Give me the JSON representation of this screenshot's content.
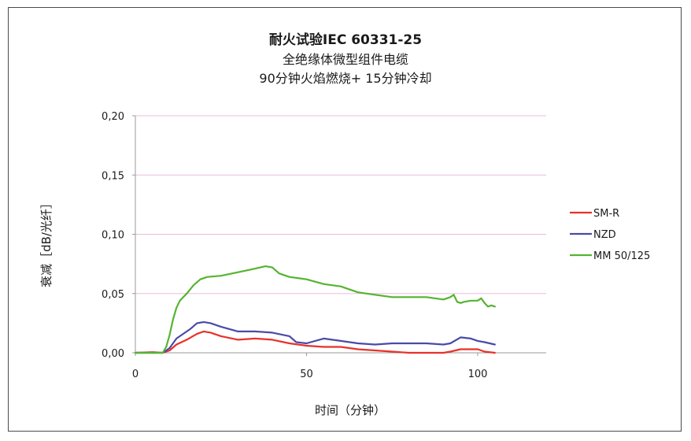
{
  "chart_data": {
    "type": "line",
    "title": "耐火试验IEC 60331-25",
    "subtitle_lines": [
      "全绝缘体微型组件电缆",
      "90分钟火焰燃烧+ 15分钟冷却"
    ],
    "xlabel": "时间（分钟）",
    "ylabel": "衰减［dB/光纤］",
    "xlim": [
      0,
      120
    ],
    "ylim": [
      0,
      0.2
    ],
    "x_ticks": [
      0,
      50,
      100
    ],
    "x_tick_labels": [
      "0",
      "50",
      "100"
    ],
    "y_ticks": [
      0,
      0.05,
      0.1,
      0.15,
      0.2
    ],
    "y_tick_labels": [
      "0,00",
      "0,05",
      "0,10",
      "0,15",
      "0,20"
    ],
    "grid": "horizontal",
    "grid_color": "#e7bde0",
    "legend_position": "right",
    "series": [
      {
        "name": "SM-R",
        "color": "#e8312a",
        "x": [
          0,
          5,
          8,
          10,
          12,
          15,
          18,
          20,
          22,
          25,
          30,
          35,
          40,
          45,
          50,
          55,
          60,
          65,
          70,
          75,
          80,
          85,
          90,
          92,
          95,
          100,
          102,
          105
        ],
        "y": [
          0.0,
          0.0005,
          0.0,
          0.002,
          0.007,
          0.011,
          0.016,
          0.018,
          0.017,
          0.014,
          0.011,
          0.012,
          0.011,
          0.008,
          0.006,
          0.005,
          0.005,
          0.003,
          0.002,
          0.001,
          0.0,
          0.0,
          0.0,
          0.001,
          0.003,
          0.003,
          0.001,
          0.0
        ]
      },
      {
        "name": "NZD",
        "color": "#4a4aa8",
        "x": [
          0,
          5,
          8,
          10,
          12,
          14,
          16,
          18,
          20,
          22,
          25,
          30,
          35,
          40,
          45,
          47,
          50,
          55,
          60,
          65,
          70,
          75,
          80,
          85,
          90,
          92,
          95,
          98,
          100,
          102,
          105
        ],
        "y": [
          0.0,
          0.0,
          0.0,
          0.004,
          0.012,
          0.016,
          0.02,
          0.025,
          0.026,
          0.025,
          0.022,
          0.018,
          0.018,
          0.017,
          0.014,
          0.009,
          0.008,
          0.012,
          0.01,
          0.008,
          0.007,
          0.008,
          0.008,
          0.008,
          0.007,
          0.008,
          0.013,
          0.012,
          0.01,
          0.009,
          0.007
        ]
      },
      {
        "name": "MM 50/125",
        "color": "#55b430",
        "x": [
          0,
          8,
          9,
          10,
          11,
          12,
          13,
          14,
          15,
          17,
          19,
          21,
          25,
          30,
          35,
          38,
          40,
          42,
          45,
          50,
          55,
          60,
          65,
          70,
          75,
          80,
          85,
          90,
          92,
          93,
          94,
          95,
          96,
          98,
          100,
          101,
          102,
          103,
          104,
          105
        ],
        "y": [
          0.0,
          0.0,
          0.005,
          0.015,
          0.028,
          0.038,
          0.044,
          0.047,
          0.05,
          0.057,
          0.062,
          0.064,
          0.065,
          0.068,
          0.071,
          0.073,
          0.072,
          0.067,
          0.064,
          0.062,
          0.058,
          0.056,
          0.051,
          0.049,
          0.047,
          0.047,
          0.047,
          0.045,
          0.047,
          0.049,
          0.043,
          0.042,
          0.043,
          0.044,
          0.044,
          0.046,
          0.042,
          0.039,
          0.04,
          0.039
        ]
      }
    ]
  }
}
